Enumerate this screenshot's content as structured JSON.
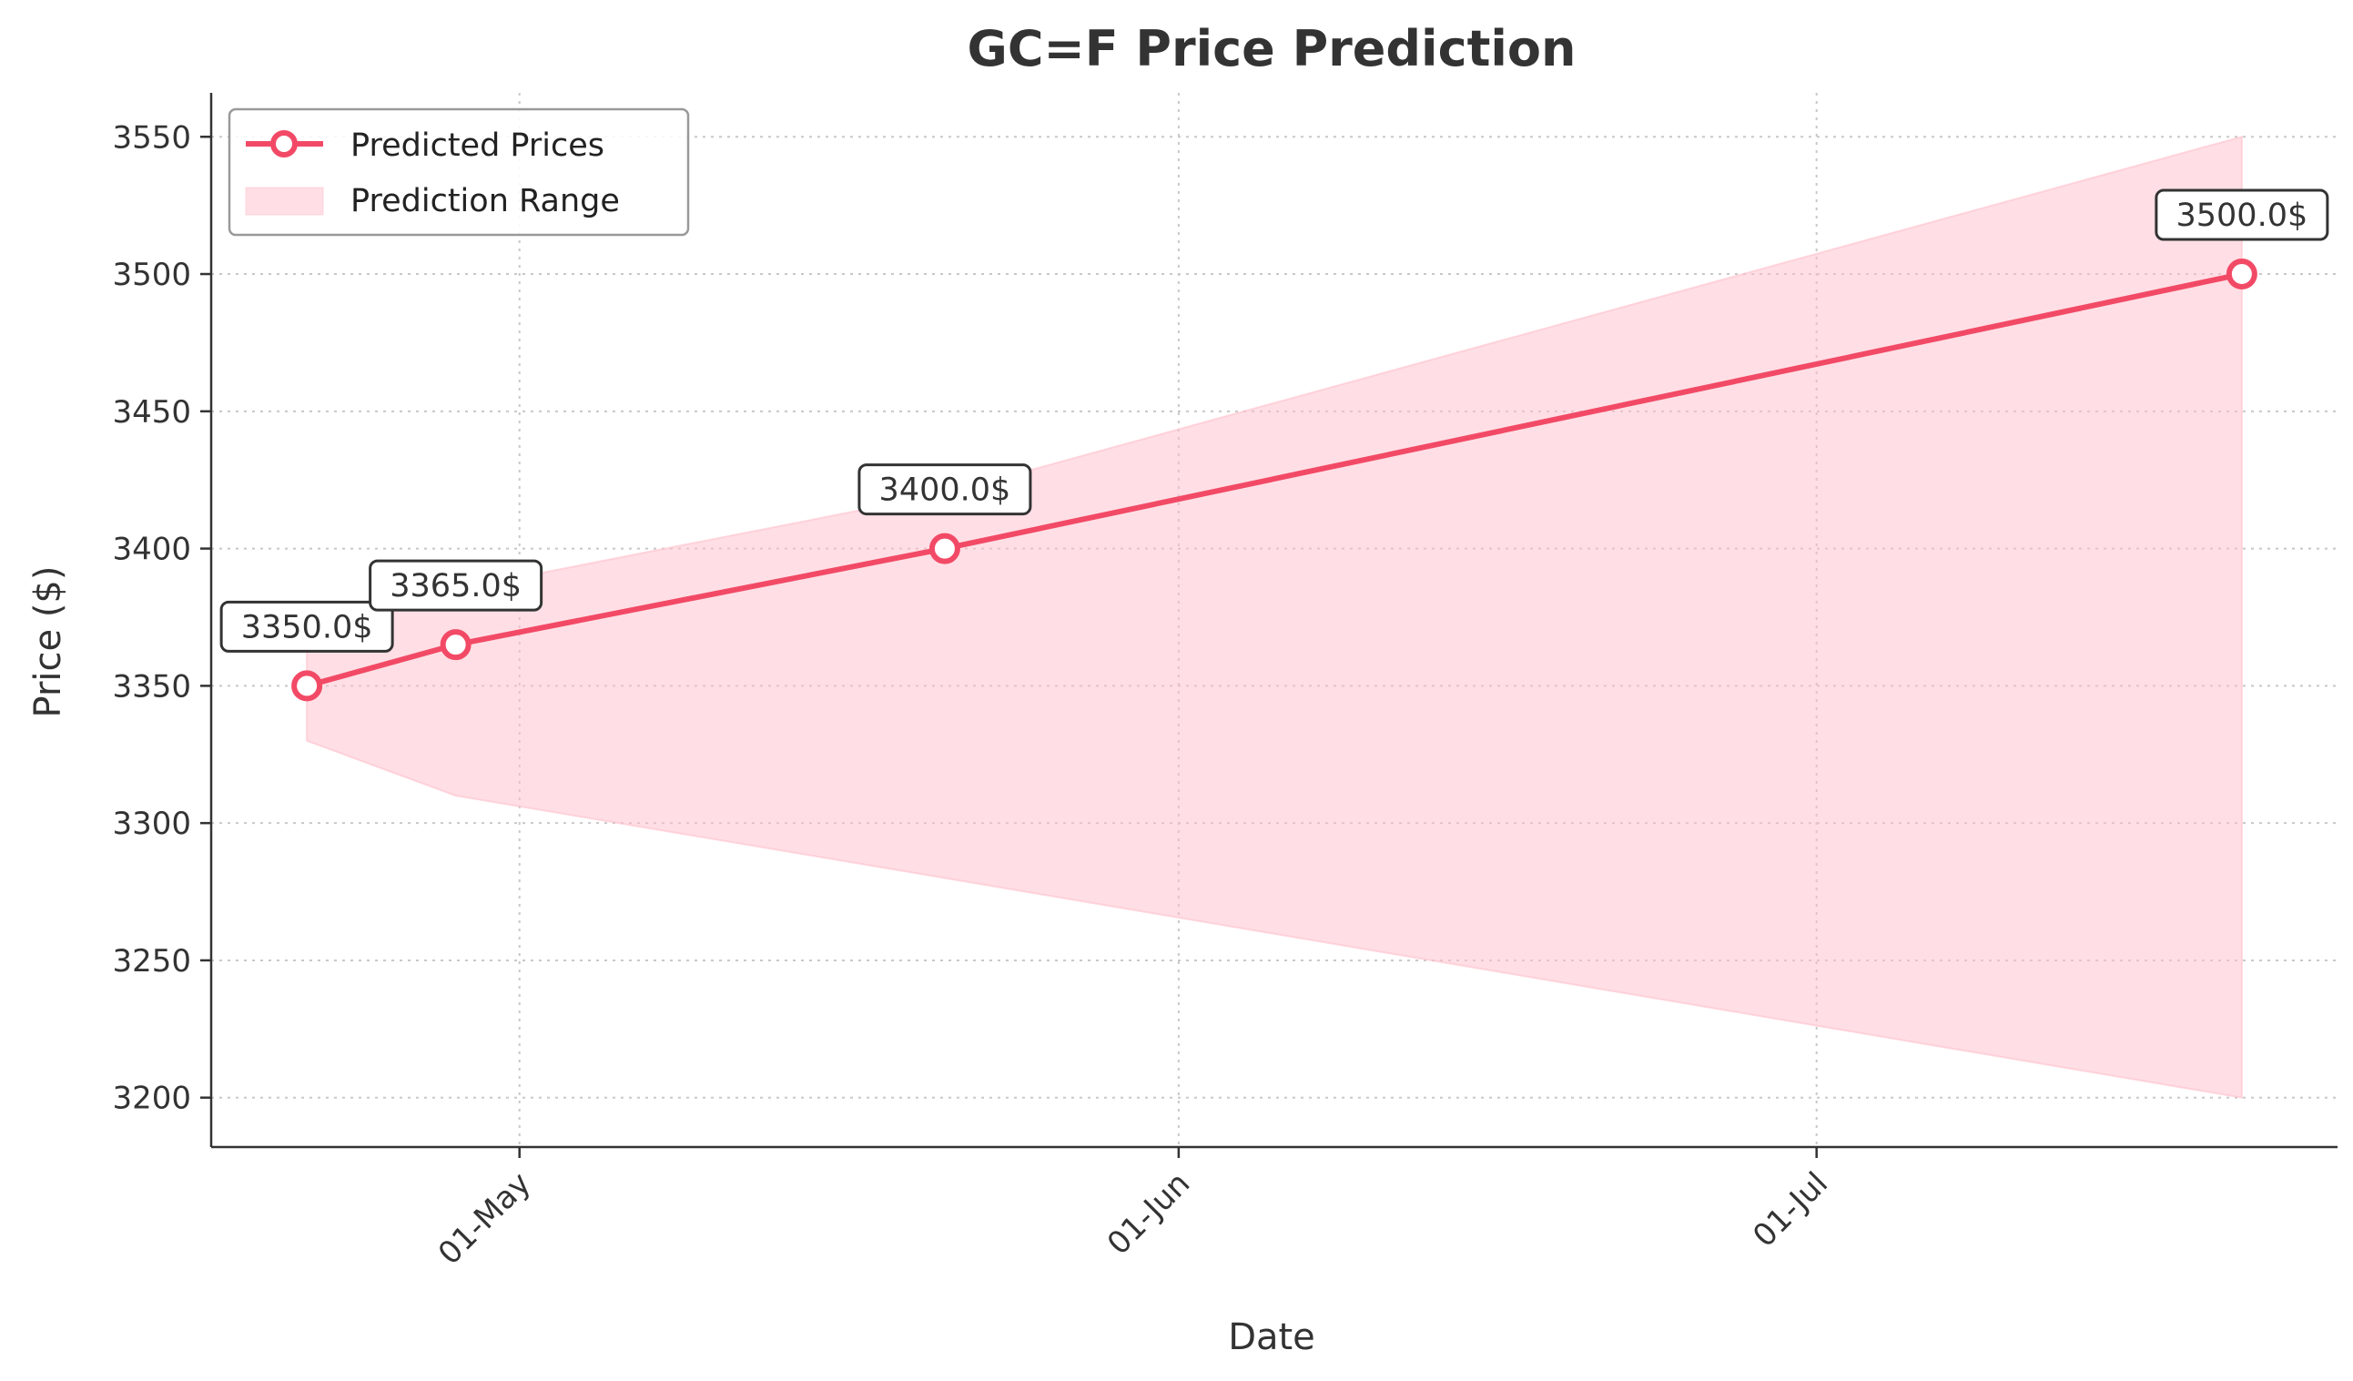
{
  "chart_data": {
    "type": "line",
    "title": "GC=F Price Prediction",
    "xlabel": "Date",
    "ylabel": "Price ($)",
    "x_tick_labels": [
      "01-May",
      "01-Jun",
      "01-Jul"
    ],
    "x_tick_days": [
      0,
      31,
      61
    ],
    "x_range_days": [
      -14.5,
      85.5
    ],
    "ylim": [
      3182,
      3566
    ],
    "y_ticks": [
      3200,
      3250,
      3300,
      3350,
      3400,
      3450,
      3500,
      3550
    ],
    "grid": true,
    "legend_position": "top-left",
    "series": [
      {
        "name": "Predicted Prices",
        "color": "#f24a66",
        "x_days": [
          -10,
          -3,
          20,
          81
        ],
        "values": [
          3350.0,
          3365.0,
          3400.0,
          3500.0
        ],
        "labels": [
          "3350.0$",
          "3365.0$",
          "3400.0$",
          "3500.0$"
        ]
      }
    ],
    "range": {
      "name": "Prediction Range",
      "color": "#ffc0cb",
      "x_days": [
        -10,
        -3,
        20,
        81
      ],
      "upper": [
        3370,
        3385,
        3420,
        3550
      ],
      "lower": [
        3330,
        3310,
        3280,
        3200
      ]
    }
  }
}
